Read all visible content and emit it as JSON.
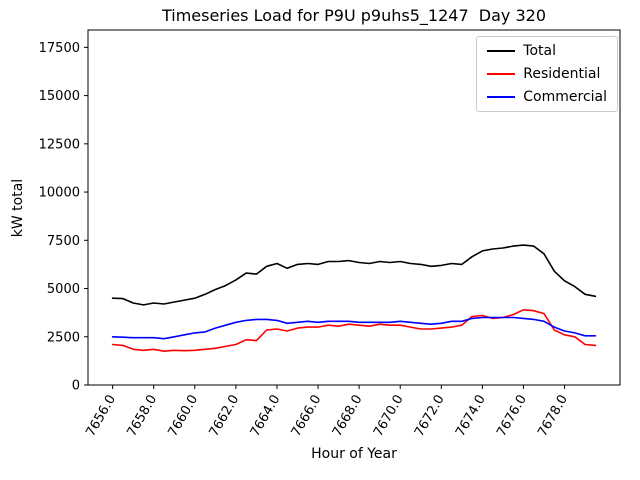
{
  "title": "Timeseries Load for P9U p9uhs5_1247  Day 320",
  "chart_data": {
    "type": "line",
    "title": "Timeseries Load for P9U p9uhs5_1247  Day 320",
    "xlabel": "Hour of Year",
    "ylabel": "kW total",
    "xlim": [
      7654.8,
      7680.7
    ],
    "ylim": [
      0,
      18400
    ],
    "grid": false,
    "legend_position": "upper right",
    "xticks": [
      7656,
      7658,
      7660,
      7662,
      7664,
      7666,
      7668,
      7670,
      7672,
      7674,
      7676,
      7678
    ],
    "xtick_labels": [
      "7656.0",
      "7658.0",
      "7660.0",
      "7662.0",
      "7664.0",
      "7666.0",
      "7668.0",
      "7670.0",
      "7672.0",
      "7674.0",
      "7676.0",
      "7678.0"
    ],
    "yticks": [
      0,
      2500,
      5000,
      7500,
      10000,
      12500,
      15000,
      17500
    ],
    "ytick_labels": [
      "0",
      "2500",
      "5000",
      "7500",
      "10000",
      "12500",
      "15000",
      "17500"
    ],
    "x": [
      7656.0,
      7656.5,
      7657.0,
      7657.5,
      7658.0,
      7658.5,
      7659.0,
      7659.5,
      7660.0,
      7660.5,
      7661.0,
      7661.5,
      7662.0,
      7662.5,
      7663.0,
      7663.5,
      7664.0,
      7664.5,
      7665.0,
      7665.5,
      7666.0,
      7666.5,
      7667.0,
      7667.5,
      7668.0,
      7668.5,
      7669.0,
      7669.5,
      7670.0,
      7670.5,
      7671.0,
      7671.5,
      7672.0,
      7672.5,
      7673.0,
      7673.5,
      7674.0,
      7674.5,
      7675.0,
      7675.5,
      7676.0,
      7676.5,
      7677.0,
      7677.5,
      7678.0,
      7678.5,
      7679.0,
      7679.5
    ],
    "series": [
      {
        "name": "Total",
        "color": "#000000",
        "values": [
          4500,
          4480,
          4250,
          4150,
          4250,
          4200,
          4300,
          4400,
          4500,
          4700,
          4950,
          5150,
          5450,
          5800,
          5750,
          6150,
          6300,
          6050,
          6250,
          6300,
          6250,
          6400,
          6400,
          6450,
          6350,
          6300,
          6400,
          6350,
          6400,
          6300,
          6250,
          6150,
          6200,
          6300,
          6250,
          6650,
          6950,
          7050,
          7100,
          7200,
          7250,
          7200,
          6800,
          5900,
          5400,
          5100,
          4700,
          4600
        ]
      },
      {
        "name": "Residential",
        "color": "#ff0000",
        "values": [
          2100,
          2050,
          1850,
          1800,
          1850,
          1750,
          1800,
          1780,
          1800,
          1850,
          1900,
          2000,
          2100,
          2350,
          2300,
          2850,
          2900,
          2800,
          2950,
          3000,
          3000,
          3100,
          3050,
          3150,
          3100,
          3050,
          3150,
          3100,
          3100,
          3000,
          2900,
          2900,
          2950,
          3000,
          3100,
          3550,
          3600,
          3450,
          3500,
          3650,
          3900,
          3850,
          3700,
          2850,
          2600,
          2500,
          2100,
          2050
        ]
      },
      {
        "name": "Commercial",
        "color": "#0000ff",
        "values": [
          2500,
          2480,
          2450,
          2450,
          2450,
          2400,
          2500,
          2600,
          2700,
          2750,
          2950,
          3100,
          3250,
          3350,
          3400,
          3400,
          3350,
          3200,
          3250,
          3300,
          3250,
          3300,
          3300,
          3300,
          3250,
          3250,
          3250,
          3250,
          3300,
          3250,
          3200,
          3150,
          3200,
          3300,
          3300,
          3450,
          3500,
          3500,
          3500,
          3500,
          3450,
          3400,
          3300,
          3000,
          2800,
          2700,
          2550,
          2550
        ]
      }
    ]
  }
}
